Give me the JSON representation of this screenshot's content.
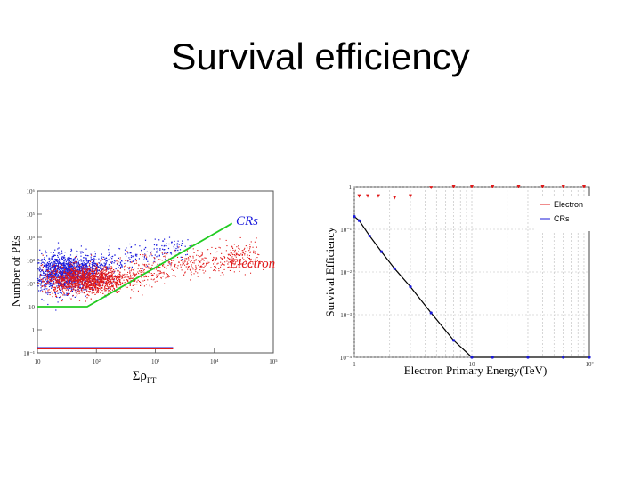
{
  "slide": {
    "title": "Survival efficiency"
  },
  "chart_data": [
    {
      "type": "scatter",
      "ylabel": "Number of PEs",
      "xlabel_main": "Σρ",
      "xlabel_sub": "FT",
      "x_log": true,
      "y_log": true,
      "xlim": [
        10,
        100000
      ],
      "ylim": [
        0.1,
        1000000
      ],
      "x_ticks": [
        "10",
        "10²",
        "10³",
        "10⁴",
        "10⁵"
      ],
      "y_ticks": [
        "10⁻¹",
        "1",
        "10",
        "10²",
        "10³",
        "10⁴",
        "10⁵",
        "10⁶"
      ],
      "series": [
        {
          "name": "CRs",
          "color": "#1a1adc",
          "center": {
            "x": 30,
            "y": 300
          },
          "spread": {
            "x": 0.3,
            "y": 0.4
          },
          "tail_to": {
            "x": 3000,
            "y": 5000
          }
        },
        {
          "name": "Electron",
          "color": "#e01818",
          "center": {
            "x": 60,
            "y": 150
          },
          "spread": {
            "x": 0.35,
            "y": 0.3
          },
          "tail_to": {
            "x": 50000,
            "y": 2000
          }
        }
      ],
      "cut_line": {
        "color": "#22cc22",
        "points": [
          [
            10,
            10
          ],
          [
            70,
            10
          ],
          [
            20000,
            40000
          ]
        ]
      },
      "baseline_lines": [
        {
          "color": "#1a1adc",
          "y": 0.1,
          "x": [
            10,
            2000
          ]
        },
        {
          "color": "#e01818",
          "y": 0.1,
          "x": [
            10,
            2000
          ]
        }
      ]
    },
    {
      "type": "scatter",
      "ylabel": "Survival Efficiency",
      "xlabel": "Electron Primary Energy(TeV)",
      "x_log": true,
      "y_log": true,
      "xlim": [
        1,
        100
      ],
      "ylim": [
        0.0001,
        1
      ],
      "x_ticks": [
        "1",
        "10",
        "10²"
      ],
      "y_ticks": [
        "10⁻⁴",
        "10⁻³",
        "10⁻²",
        "10⁻¹",
        "1"
      ],
      "legend": "top-right",
      "series": [
        {
          "name": "Electron",
          "color": "#e01818",
          "x": [
            1.1,
            1.3,
            1.6,
            2.2,
            3,
            4.5,
            7,
            10,
            15,
            25,
            40,
            60,
            90
          ],
          "y": [
            0.6,
            0.6,
            0.6,
            0.55,
            0.6,
            0.95,
            1,
            1,
            1,
            1,
            1,
            1,
            1
          ]
        },
        {
          "name": "CRs",
          "color": "#1a1ad8",
          "x": [
            1.0,
            1.1,
            1.35,
            1.7,
            2.2,
            3,
            4.5,
            7,
            10,
            15,
            30,
            60,
            100
          ],
          "y": [
            0.2,
            0.16,
            0.07,
            0.03,
            0.012,
            0.0045,
            0.0011,
            0.00025,
            0.0001,
            0.0001,
            0.0001,
            0.0001,
            0.0001
          ]
        }
      ]
    }
  ]
}
